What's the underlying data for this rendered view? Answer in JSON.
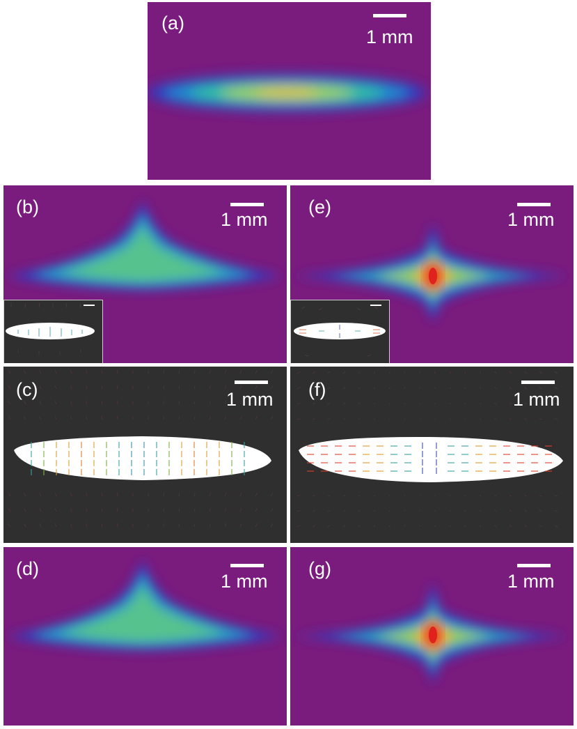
{
  "colors": {
    "background_purple": "#7a1b7e",
    "field_dark": "#2f2f2f",
    "page": "#ffffff"
  },
  "panels": {
    "a": {
      "label": "(a)",
      "scalebar": "1 mm"
    },
    "b": {
      "label": "(b)",
      "scalebar": "1 mm"
    },
    "c": {
      "label": "(c)",
      "scalebar": "1 mm"
    },
    "d": {
      "label": "(d)",
      "scalebar": "1 mm"
    },
    "e": {
      "label": "(e)",
      "scalebar": "1 mm"
    },
    "f": {
      "label": "(f)",
      "scalebar": "1 mm"
    },
    "g": {
      "label": "(g)",
      "scalebar": "1 mm"
    }
  }
}
